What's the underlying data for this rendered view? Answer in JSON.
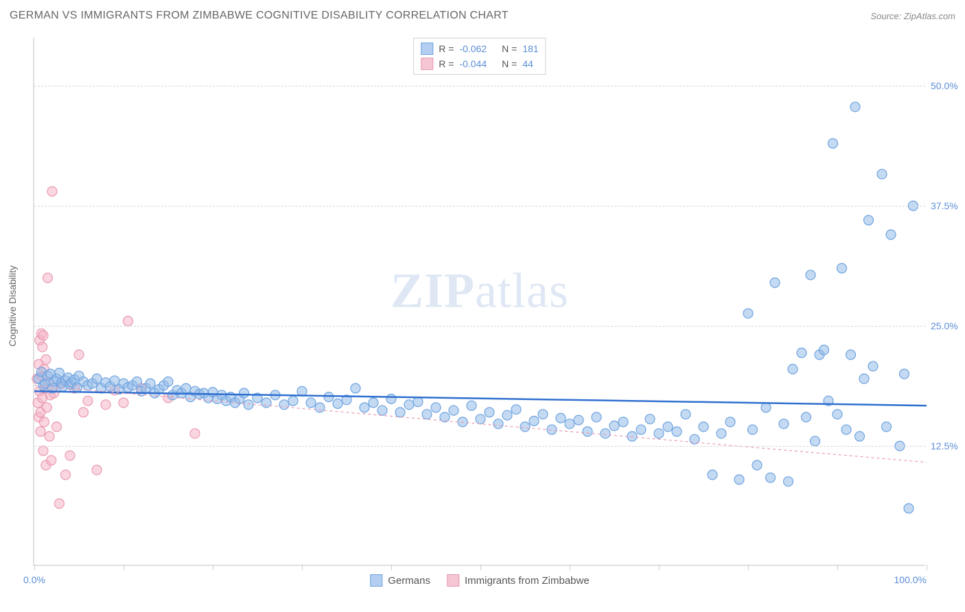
{
  "header": {
    "title": "GERMAN VS IMMIGRANTS FROM ZIMBABWE COGNITIVE DISABILITY CORRELATION CHART",
    "source": "Source: ZipAtlas.com"
  },
  "chart": {
    "type": "scatter",
    "watermark": "ZIPatlas",
    "y_axis": {
      "label": "Cognitive Disability",
      "min": 0,
      "max": 55,
      "ticks": [
        {
          "value": 12.5,
          "label": "12.5%"
        },
        {
          "value": 25.0,
          "label": "25.0%"
        },
        {
          "value": 37.5,
          "label": "37.5%"
        },
        {
          "value": 50.0,
          "label": "50.0%"
        }
      ],
      "label_color": "#666666",
      "tick_color": "#5b8dd6",
      "grid_color": "#d8d8d8"
    },
    "x_axis": {
      "min": 0,
      "max": 100,
      "tick_positions": [
        0,
        10,
        20,
        30,
        40,
        50,
        60,
        70,
        80,
        90,
        100
      ],
      "left_label": "0.0%",
      "right_label": "100.0%",
      "tick_color": "#5b8dd6"
    },
    "stats_legend": {
      "rows": [
        {
          "swatch_fill": "#b3cef0",
          "swatch_border": "#6fa3e0",
          "r_label": "R =",
          "r_value": "-0.062",
          "n_label": "N =",
          "n_value": "181"
        },
        {
          "swatch_fill": "#f5c6d3",
          "swatch_border": "#e89ab0",
          "r_label": "R =",
          "r_value": "-0.044",
          "n_label": "N =",
          "n_value": "44"
        }
      ]
    },
    "bottom_legend": {
      "items": [
        {
          "swatch_fill": "#b3cef0",
          "swatch_border": "#6fa3e0",
          "label": "Germans"
        },
        {
          "swatch_fill": "#f5c6d3",
          "swatch_border": "#e89ab0",
          "label": "Immigrants from Zimbabwe"
        }
      ]
    },
    "series": [
      {
        "name": "germans",
        "marker_fill": "rgba(147,187,232,0.55)",
        "marker_stroke": "#6fa3e0",
        "marker_radius": 7,
        "trend": {
          "y_intercept": 18.2,
          "slope": -0.015,
          "stroke": "#2f6fd0",
          "stroke_width": 2.5,
          "dash": "none"
        },
        "points": [
          [
            0.5,
            19.5
          ],
          [
            0.8,
            20.2
          ],
          [
            1.0,
            18.8
          ],
          [
            1.2,
            19.0
          ],
          [
            1.5,
            19.8
          ],
          [
            1.8,
            20.0
          ],
          [
            2.0,
            18.5
          ],
          [
            2.2,
            19.2
          ],
          [
            2.5,
            19.5
          ],
          [
            2.8,
            20.1
          ],
          [
            3.0,
            19.0
          ],
          [
            3.2,
            18.7
          ],
          [
            3.5,
            19.3
          ],
          [
            3.8,
            19.6
          ],
          [
            4.0,
            18.9
          ],
          [
            4.2,
            19.1
          ],
          [
            4.5,
            19.4
          ],
          [
            4.8,
            18.6
          ],
          [
            5.0,
            19.8
          ],
          [
            5.5,
            19.2
          ],
          [
            6.0,
            18.8
          ],
          [
            6.5,
            19.0
          ],
          [
            7.0,
            19.5
          ],
          [
            7.5,
            18.5
          ],
          [
            8.0,
            19.1
          ],
          [
            8.5,
            18.7
          ],
          [
            9.0,
            19.3
          ],
          [
            9.5,
            18.4
          ],
          [
            10.0,
            19.0
          ],
          [
            10.5,
            18.6
          ],
          [
            11.0,
            18.8
          ],
          [
            11.5,
            19.2
          ],
          [
            12.0,
            18.2
          ],
          [
            12.5,
            18.5
          ],
          [
            13.0,
            19.0
          ],
          [
            13.5,
            18.0
          ],
          [
            14.0,
            18.4
          ],
          [
            14.5,
            18.8
          ],
          [
            15.0,
            19.2
          ],
          [
            15.5,
            17.8
          ],
          [
            16.0,
            18.3
          ],
          [
            16.5,
            18.0
          ],
          [
            17.0,
            18.5
          ],
          [
            17.5,
            17.6
          ],
          [
            18.0,
            18.2
          ],
          [
            18.5,
            17.9
          ],
          [
            19.0,
            18.0
          ],
          [
            19.5,
            17.5
          ],
          [
            20.0,
            18.1
          ],
          [
            20.5,
            17.4
          ],
          [
            21.0,
            17.8
          ],
          [
            21.5,
            17.2
          ],
          [
            22.0,
            17.6
          ],
          [
            22.5,
            17.0
          ],
          [
            23.0,
            17.4
          ],
          [
            23.5,
            18.0
          ],
          [
            24.0,
            16.8
          ],
          [
            25.0,
            17.5
          ],
          [
            26.0,
            17.0
          ],
          [
            27.0,
            17.8
          ],
          [
            28.0,
            16.8
          ],
          [
            29.0,
            17.2
          ],
          [
            30.0,
            18.2
          ],
          [
            31.0,
            17.0
          ],
          [
            32.0,
            16.5
          ],
          [
            33.0,
            17.6
          ],
          [
            34.0,
            16.9
          ],
          [
            35.0,
            17.3
          ],
          [
            36.0,
            18.5
          ],
          [
            37.0,
            16.5
          ],
          [
            38.0,
            17.0
          ],
          [
            39.0,
            16.2
          ],
          [
            40.0,
            17.4
          ],
          [
            41.0,
            16.0
          ],
          [
            42.0,
            16.8
          ],
          [
            43.0,
            17.1
          ],
          [
            44.0,
            15.8
          ],
          [
            45.0,
            16.5
          ],
          [
            46.0,
            15.5
          ],
          [
            47.0,
            16.2
          ],
          [
            48.0,
            15.0
          ],
          [
            49.0,
            16.7
          ],
          [
            50.0,
            15.3
          ],
          [
            51.0,
            16.0
          ],
          [
            52.0,
            14.8
          ],
          [
            53.0,
            15.7
          ],
          [
            54.0,
            16.3
          ],
          [
            55.0,
            14.5
          ],
          [
            56.0,
            15.1
          ],
          [
            57.0,
            15.8
          ],
          [
            58.0,
            14.2
          ],
          [
            59.0,
            15.4
          ],
          [
            60.0,
            14.8
          ],
          [
            61.0,
            15.2
          ],
          [
            62.0,
            14.0
          ],
          [
            63.0,
            15.5
          ],
          [
            64.0,
            13.8
          ],
          [
            65.0,
            14.6
          ],
          [
            66.0,
            15.0
          ],
          [
            67.0,
            13.5
          ],
          [
            68.0,
            14.2
          ],
          [
            69.0,
            15.3
          ],
          [
            70.0,
            13.8
          ],
          [
            71.0,
            14.5
          ],
          [
            72.0,
            14.0
          ],
          [
            73.0,
            15.8
          ],
          [
            74.0,
            13.2
          ],
          [
            75.0,
            14.5
          ],
          [
            76.0,
            9.5
          ],
          [
            77.0,
            13.8
          ],
          [
            78.0,
            15.0
          ],
          [
            79.0,
            9.0
          ],
          [
            80.0,
            26.3
          ],
          [
            80.5,
            14.2
          ],
          [
            81.0,
            10.5
          ],
          [
            82.0,
            16.5
          ],
          [
            82.5,
            9.2
          ],
          [
            83.0,
            29.5
          ],
          [
            84.0,
            14.8
          ],
          [
            84.5,
            8.8
          ],
          [
            85.0,
            20.5
          ],
          [
            86.0,
            22.2
          ],
          [
            86.5,
            15.5
          ],
          [
            87.0,
            30.3
          ],
          [
            87.5,
            13.0
          ],
          [
            88.0,
            22.0
          ],
          [
            88.5,
            22.5
          ],
          [
            89.0,
            17.2
          ],
          [
            89.5,
            44.0
          ],
          [
            90.0,
            15.8
          ],
          [
            90.5,
            31.0
          ],
          [
            91.0,
            14.2
          ],
          [
            91.5,
            22.0
          ],
          [
            92.0,
            47.8
          ],
          [
            92.5,
            13.5
          ],
          [
            93.0,
            19.5
          ],
          [
            93.5,
            36.0
          ],
          [
            94.0,
            20.8
          ],
          [
            95.0,
            40.8
          ],
          [
            95.5,
            14.5
          ],
          [
            96.0,
            34.5
          ],
          [
            97.0,
            12.5
          ],
          [
            97.5,
            20.0
          ],
          [
            98.0,
            6.0
          ],
          [
            98.5,
            37.5
          ]
        ]
      },
      {
        "name": "zimbabwe",
        "marker_fill": "rgba(245,180,200,0.55)",
        "marker_stroke": "#e89ab0",
        "marker_radius": 7,
        "trend": {
          "y_intercept": 18.8,
          "slope": -0.08,
          "stroke": "#e89ab0",
          "stroke_width": 1.2,
          "dash": "4,4"
        },
        "points": [
          [
            0.3,
            19.5
          ],
          [
            0.4,
            17.0
          ],
          [
            0.5,
            21.0
          ],
          [
            0.5,
            15.5
          ],
          [
            0.6,
            23.5
          ],
          [
            0.6,
            18.2
          ],
          [
            0.7,
            16.0
          ],
          [
            0.7,
            14.0
          ],
          [
            0.8,
            19.8
          ],
          [
            0.8,
            24.2
          ],
          [
            0.9,
            17.5
          ],
          [
            0.9,
            22.8
          ],
          [
            1.0,
            12.0
          ],
          [
            1.0,
            24.0
          ],
          [
            1.1,
            20.5
          ],
          [
            1.1,
            15.0
          ],
          [
            1.2,
            18.5
          ],
          [
            1.3,
            10.5
          ],
          [
            1.3,
            21.5
          ],
          [
            1.4,
            16.5
          ],
          [
            1.5,
            30.0
          ],
          [
            1.6,
            19.2
          ],
          [
            1.7,
            13.5
          ],
          [
            1.8,
            17.8
          ],
          [
            1.9,
            11.0
          ],
          [
            2.0,
            39.0
          ],
          [
            2.2,
            18.0
          ],
          [
            2.5,
            14.5
          ],
          [
            2.8,
            6.5
          ],
          [
            3.0,
            19.0
          ],
          [
            3.5,
            9.5
          ],
          [
            4.0,
            11.5
          ],
          [
            4.5,
            18.5
          ],
          [
            5.0,
            22.0
          ],
          [
            5.5,
            16.0
          ],
          [
            6.0,
            17.2
          ],
          [
            7.0,
            10.0
          ],
          [
            8.0,
            16.8
          ],
          [
            9.0,
            18.3
          ],
          [
            10.0,
            17.0
          ],
          [
            10.5,
            25.5
          ],
          [
            12.0,
            18.5
          ],
          [
            15.0,
            17.5
          ],
          [
            18.0,
            13.8
          ]
        ]
      }
    ],
    "background_color": "#ffffff",
    "border_color": "#e0e0e0"
  }
}
